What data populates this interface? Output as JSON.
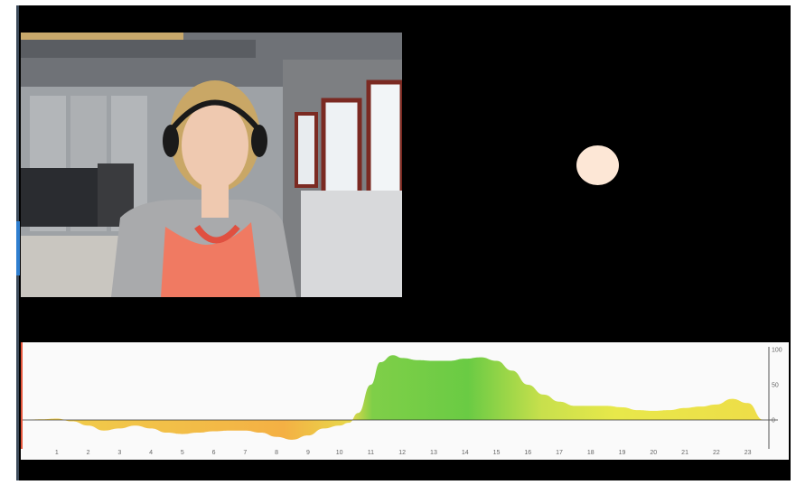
{
  "colors": {
    "background": "#000000",
    "stimulus": "#fde7d6",
    "positive_high": "#66cc44",
    "positive_low": "#e8e84a",
    "negative": "#f2c04a",
    "playhead": "#e4553a"
  },
  "video": {
    "kind": "webcam-frame"
  },
  "stimulus": {
    "shape": "circle",
    "color": "#fde7d6"
  },
  "chart_data": {
    "type": "area",
    "x_ticks": [
      "1",
      "2",
      "3",
      "4",
      "5",
      "6",
      "7",
      "8",
      "9",
      "10",
      "11",
      "12",
      "13",
      "14",
      "15",
      "16",
      "17",
      "18",
      "19",
      "20",
      "21",
      "22",
      "23"
    ],
    "y_ticks": [
      "100",
      "50",
      "0"
    ],
    "ylim": [
      -30,
      100
    ],
    "xlim": [
      0,
      23.5
    ],
    "playhead_x": 0,
    "x": [
      0,
      0.5,
      1,
      1.5,
      2,
      2.5,
      3,
      3.5,
      4,
      4.5,
      5,
      5.5,
      6,
      6.5,
      7,
      7.5,
      8,
      8.5,
      9,
      9.5,
      10,
      10.3,
      10.6,
      11,
      11.3,
      11.7,
      12,
      12.5,
      13,
      13.5,
      14,
      14.5,
      15,
      15.5,
      16,
      16.5,
      17,
      17.5,
      18,
      18.5,
      19,
      19.5,
      20,
      20.5,
      21,
      21.5,
      22,
      22.5,
      23,
      23.5
    ],
    "y": [
      0,
      1,
      2,
      -2,
      -8,
      -15,
      -12,
      -8,
      -12,
      -18,
      -20,
      -18,
      -16,
      -15,
      -15,
      -18,
      -24,
      -28,
      -22,
      -12,
      -8,
      -4,
      10,
      50,
      82,
      92,
      88,
      85,
      84,
      84,
      87,
      89,
      84,
      70,
      50,
      36,
      26,
      20,
      20,
      20,
      18,
      14,
      13,
      14,
      17,
      19,
      22,
      30,
      24,
      0
    ]
  }
}
